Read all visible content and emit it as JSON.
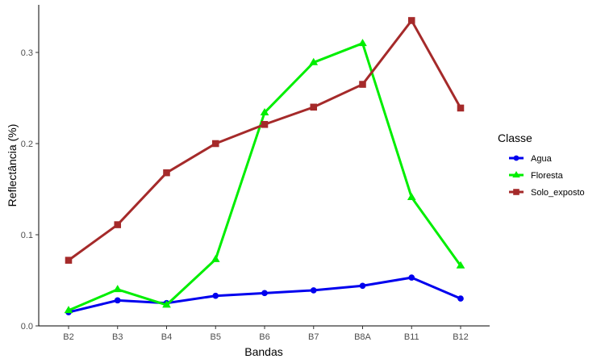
{
  "chart_data": {
    "type": "line",
    "xlabel": "Bandas",
    "ylabel": "Reflectância (%)",
    "categories": [
      "B2",
      "B3",
      "B4",
      "B5",
      "B6",
      "B7",
      "B8A",
      "B11",
      "B12"
    ],
    "ylim": [
      0,
      0.355
    ],
    "yticks": [
      0.0,
      0.1,
      0.2,
      0.3
    ],
    "ytick_labels": [
      "0.0",
      "0.1",
      "0.2",
      "0.3"
    ],
    "grid": false,
    "legend": {
      "title": "Classe",
      "position": "right"
    },
    "series": [
      {
        "name": "Agua",
        "color": "#0000ee",
        "marker": "circle",
        "values": [
          0.015,
          0.028,
          0.025,
          0.033,
          0.036,
          0.039,
          0.044,
          0.053,
          0.03
        ]
      },
      {
        "name": "Floresta",
        "color": "#00ee00",
        "marker": "triangle",
        "values": [
          0.017,
          0.04,
          0.023,
          0.073,
          0.234,
          0.289,
          0.31,
          0.141,
          0.066
        ]
      },
      {
        "name": "Solo_exposto",
        "color": "#a52a2a",
        "marker": "square",
        "values": [
          0.072,
          0.111,
          0.168,
          0.2,
          0.221,
          0.24,
          0.265,
          0.335,
          0.239
        ]
      }
    ]
  }
}
